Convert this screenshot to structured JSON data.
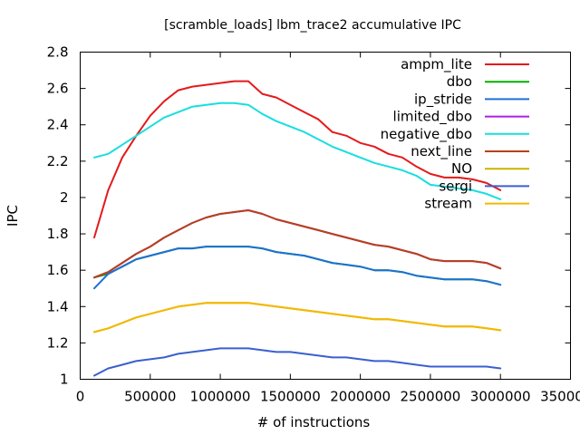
{
  "chart_data": {
    "type": "line",
    "title": "[scramble_loads] lbm_trace2 accumulative IPC",
    "xlabel": "# of instructions",
    "ylabel": "IPC",
    "xlim": [
      0,
      3500000
    ],
    "ylim": [
      1,
      2.8
    ],
    "x_ticks": [
      0,
      500000,
      1000000,
      1500000,
      2000000,
      2500000,
      3000000,
      3500000
    ],
    "x_tick_labels": [
      "0",
      "500000",
      "1000000",
      "1500000",
      "2000000",
      "2500000",
      "3000000",
      "3500000"
    ],
    "y_ticks": [
      1,
      1.2,
      1.4,
      1.6,
      1.8,
      2,
      2.2,
      2.4,
      2.6,
      2.8
    ],
    "y_tick_labels": [
      "1",
      "1.2",
      "1.4",
      "1.6",
      "1.8",
      "2",
      "2.2",
      "2.4",
      "2.6",
      "2.8"
    ],
    "grid": false,
    "legend_position": "top-right",
    "x": [
      100000,
      200000,
      300000,
      400000,
      500000,
      600000,
      700000,
      800000,
      900000,
      1000000,
      1100000,
      1200000,
      1300000,
      1400000,
      1500000,
      1600000,
      1700000,
      1800000,
      1900000,
      2000000,
      2100000,
      2200000,
      2300000,
      2400000,
      2500000,
      2600000,
      2700000,
      2800000,
      2900000,
      3000000
    ],
    "series": [
      {
        "name": "ampm_lite",
        "color": "#e41a1c",
        "values": [
          1.78,
          2.04,
          2.22,
          2.34,
          2.45,
          2.53,
          2.59,
          2.61,
          2.62,
          2.63,
          2.64,
          2.64,
          2.57,
          2.55,
          2.51,
          2.47,
          2.43,
          2.36,
          2.34,
          2.3,
          2.28,
          2.24,
          2.22,
          2.17,
          2.13,
          2.11,
          2.11,
          2.1,
          2.08,
          2.04
        ]
      },
      {
        "name": "dbo",
        "color": "#00b000",
        "values": [
          1.56,
          1.58,
          1.62,
          1.66,
          1.68,
          1.7,
          1.72,
          1.72,
          1.73,
          1.73,
          1.73,
          1.73,
          1.72,
          1.7,
          1.69,
          1.68,
          1.66,
          1.64,
          1.63,
          1.62,
          1.6,
          1.6,
          1.59,
          1.57,
          1.56,
          1.55,
          1.55,
          1.55,
          1.54,
          1.52
        ]
      },
      {
        "name": "ip_stride",
        "color": "#1f6fd6",
        "values": [
          1.5,
          1.58,
          1.62,
          1.66,
          1.68,
          1.7,
          1.72,
          1.72,
          1.73,
          1.73,
          1.73,
          1.73,
          1.72,
          1.7,
          1.69,
          1.68,
          1.66,
          1.64,
          1.63,
          1.62,
          1.6,
          1.6,
          1.59,
          1.57,
          1.56,
          1.55,
          1.55,
          1.55,
          1.54,
          1.52
        ]
      },
      {
        "name": "limited_dbo",
        "color": "#b01ee0",
        "values": [
          1.56,
          1.59,
          1.64,
          1.69,
          1.73,
          1.78,
          1.82,
          1.86,
          1.89,
          1.91,
          1.92,
          1.93,
          1.91,
          1.88,
          1.86,
          1.84,
          1.82,
          1.8,
          1.78,
          1.76,
          1.74,
          1.73,
          1.71,
          1.69,
          1.66,
          1.65,
          1.65,
          1.65,
          1.64,
          1.61
        ]
      },
      {
        "name": "negative_dbo",
        "color": "#19dede",
        "values": [
          2.22,
          2.24,
          2.29,
          2.34,
          2.39,
          2.44,
          2.47,
          2.5,
          2.51,
          2.52,
          2.52,
          2.51,
          2.46,
          2.42,
          2.39,
          2.36,
          2.32,
          2.28,
          2.25,
          2.22,
          2.19,
          2.17,
          2.15,
          2.12,
          2.07,
          2.06,
          2.05,
          2.04,
          2.02,
          1.99
        ]
      },
      {
        "name": "next_line",
        "color": "#b5421a",
        "values": [
          1.56,
          1.59,
          1.64,
          1.69,
          1.73,
          1.78,
          1.82,
          1.86,
          1.89,
          1.91,
          1.92,
          1.93,
          1.91,
          1.88,
          1.86,
          1.84,
          1.82,
          1.8,
          1.78,
          1.76,
          1.74,
          1.73,
          1.71,
          1.69,
          1.66,
          1.65,
          1.65,
          1.65,
          1.64,
          1.61
        ]
      },
      {
        "name": "NO",
        "color": "#c8b400",
        "values": [
          1.26,
          1.28,
          1.31,
          1.34,
          1.36,
          1.38,
          1.4,
          1.41,
          1.42,
          1.42,
          1.42,
          1.42,
          1.41,
          1.4,
          1.39,
          1.38,
          1.37,
          1.36,
          1.35,
          1.34,
          1.33,
          1.33,
          1.32,
          1.31,
          1.3,
          1.29,
          1.29,
          1.29,
          1.28,
          1.27
        ]
      },
      {
        "name": "sergi",
        "color": "#3a5fd0",
        "values": [
          1.02,
          1.06,
          1.08,
          1.1,
          1.11,
          1.12,
          1.14,
          1.15,
          1.16,
          1.17,
          1.17,
          1.17,
          1.16,
          1.15,
          1.15,
          1.14,
          1.13,
          1.12,
          1.12,
          1.11,
          1.1,
          1.1,
          1.09,
          1.08,
          1.07,
          1.07,
          1.07,
          1.07,
          1.07,
          1.06
        ]
      },
      {
        "name": "stream",
        "color": "#f5b800",
        "values": [
          1.26,
          1.28,
          1.31,
          1.34,
          1.36,
          1.38,
          1.4,
          1.41,
          1.42,
          1.42,
          1.42,
          1.42,
          1.41,
          1.4,
          1.39,
          1.38,
          1.37,
          1.36,
          1.35,
          1.34,
          1.33,
          1.33,
          1.32,
          1.31,
          1.3,
          1.29,
          1.29,
          1.29,
          1.28,
          1.27
        ]
      }
    ]
  }
}
